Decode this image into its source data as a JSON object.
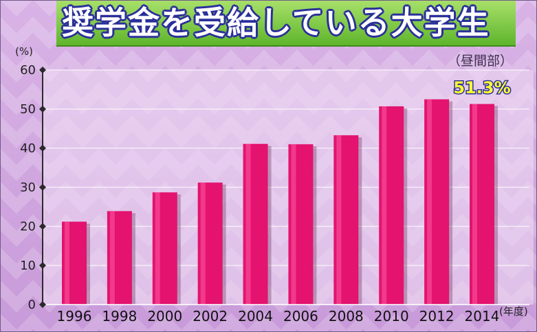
{
  "title": "奨学金を受給している大学生",
  "subtitle": "（昼間部）",
  "chart_data": {
    "type": "bar",
    "y_unit_label": "(%)",
    "x_unit_label": "(年度)",
    "categories": [
      "1996",
      "1998",
      "2000",
      "2002",
      "2004",
      "2006",
      "2008",
      "2010",
      "2012",
      "2014"
    ],
    "values": [
      21.2,
      23.9,
      28.7,
      31.2,
      41.1,
      41.0,
      43.3,
      50.7,
      52.5,
      51.3
    ],
    "ylim": [
      0,
      60
    ],
    "yticks": [
      "0",
      "10",
      "20",
      "30",
      "40",
      "50",
      "60"
    ],
    "highlight": {
      "category": "2014",
      "label": "51.3%"
    },
    "bar_color": "#e3136f",
    "grid": true
  }
}
